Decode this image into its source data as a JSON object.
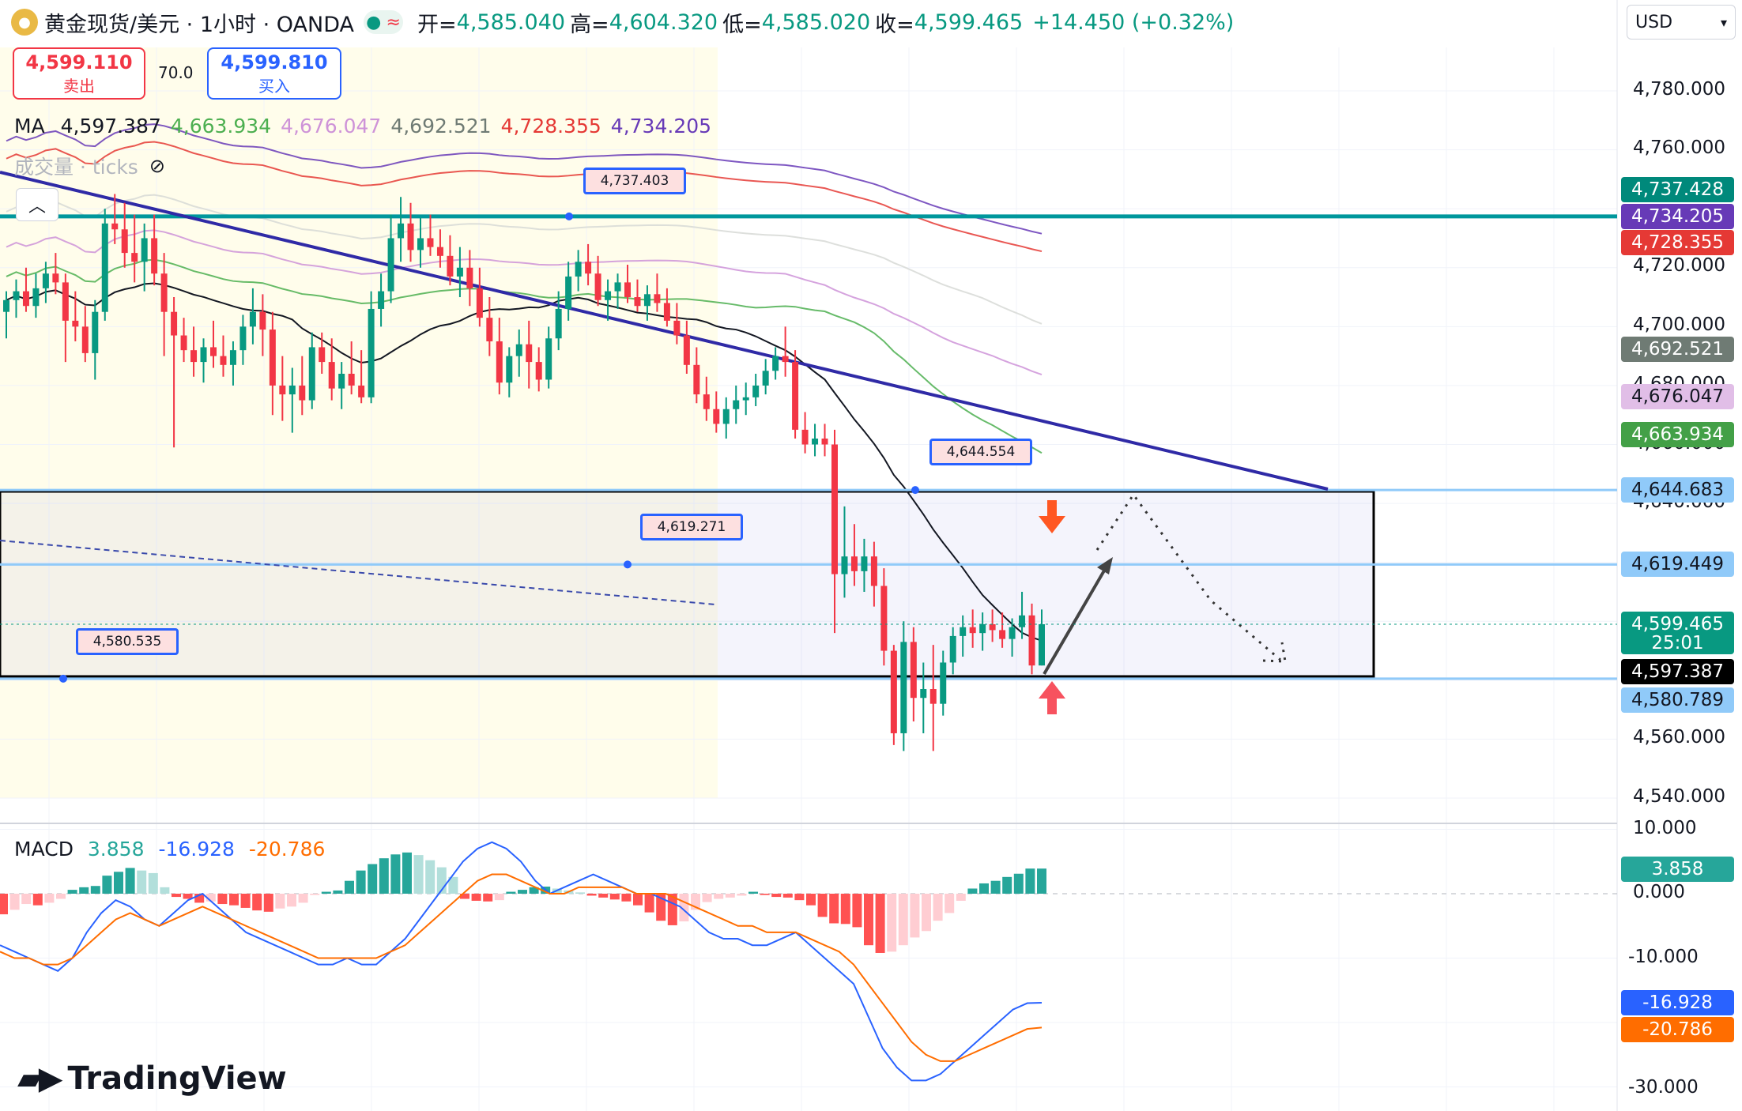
{
  "header": {
    "symbol": "黄金现货/美元 · 1小时 · OANDA",
    "open_label": "开=",
    "open": "4,585.040",
    "high_label": "高=",
    "high": "4,604.320",
    "low_label": "低=",
    "low": "4,585.020",
    "close_label": "收=",
    "close": "4,599.465",
    "change": "+14.450 (+0.32%)"
  },
  "trade": {
    "sell_price": "4,599.110",
    "sell_label": "卖出",
    "spread": "70.0",
    "buy_price": "4,599.810",
    "buy_label": "买入"
  },
  "ma_legend": {
    "label": "MA",
    "values": [
      "4,597.387",
      "4,663.934",
      "4,676.047",
      "4,692.521",
      "4,728.355",
      "4,734.205"
    ],
    "colors": [
      "#131722",
      "#4caf50",
      "#ce93d8",
      "#6f7b74",
      "#e53935",
      "#673ab7"
    ]
  },
  "volume_legend": "成交量 · ticks",
  "macd_legend": {
    "label": "MACD",
    "hist": "3.858",
    "macd": "-16.928",
    "signal": "-20.786"
  },
  "currency": "USD",
  "brand": "TradingView",
  "price_axis_ticks": [
    "4,780.000",
    "4,760.000",
    "4,720.000",
    "4,700.000",
    "4,680.000",
    "4,660.000",
    "4,640.000",
    "4,560.000",
    "4,540.000"
  ],
  "macd_axis_ticks": [
    "10.000",
    "0.000",
    "-10.000",
    "-30.000"
  ],
  "price_labels": [
    {
      "text": "4,737.428",
      "color": "#00897b"
    },
    {
      "text": "4,734.205",
      "color": "#673ab7"
    },
    {
      "text": "4,728.355",
      "color": "#e53935"
    },
    {
      "text": "4,692.521",
      "color": "#6f7b74"
    },
    {
      "text": "4,676.047",
      "color": "#e1bee7"
    },
    {
      "text": "4,663.934",
      "color": "#43a047"
    },
    {
      "text": "4,644.683",
      "color": "#90caf9"
    },
    {
      "text": "4,619.449",
      "color": "#90caf9"
    },
    {
      "text": "4,599.465",
      "color": "#089981"
    },
    {
      "text": "25:01",
      "color": "#089981"
    },
    {
      "text": "4,597.387",
      "color": "#000000"
    },
    {
      "text": "4,580.789",
      "color": "#90caf9"
    }
  ],
  "macd_labels": [
    {
      "text": "3.858",
      "color": "#26a69a"
    },
    {
      "text": "-16.928",
      "color": "#2962ff"
    },
    {
      "text": "-20.786",
      "color": "#ff6d00"
    }
  ],
  "callouts": [
    "4,737.403",
    "4,644.554",
    "4,619.271",
    "4,580.535"
  ],
  "chart_data": [
    {
      "type": "candlestick",
      "title": "黄金现货/美元 · 1小时 · OANDA",
      "ylim": [
        4530,
        4790
      ],
      "candles": [
        [
          4705,
          4712,
          4696,
          4709
        ],
        [
          4709,
          4716,
          4703,
          4712
        ],
        [
          4712,
          4720,
          4705,
          4707
        ],
        [
          4707,
          4718,
          4703,
          4713
        ],
        [
          4713,
          4722,
          4708,
          4718
        ],
        [
          4718,
          4725,
          4711,
          4715
        ],
        [
          4715,
          4718,
          4688,
          4702
        ],
        [
          4702,
          4712,
          4695,
          4700
        ],
        [
          4700,
          4707,
          4688,
          4691
        ],
        [
          4691,
          4709,
          4682,
          4705
        ],
        [
          4705,
          4740,
          4702,
          4735
        ],
        [
          4735,
          4745,
          4728,
          4733
        ],
        [
          4733,
          4742,
          4720,
          4725
        ],
        [
          4725,
          4738,
          4715,
          4722
        ],
        [
          4722,
          4735,
          4712,
          4730
        ],
        [
          4730,
          4738,
          4714,
          4718
        ],
        [
          4718,
          4725,
          4690,
          4705
        ],
        [
          4705,
          4710,
          4659,
          4697
        ],
        [
          4697,
          4703,
          4688,
          4692
        ],
        [
          4692,
          4700,
          4683,
          4688
        ],
        [
          4688,
          4696,
          4681,
          4693
        ],
        [
          4693,
          4702,
          4686,
          4690
        ],
        [
          4690,
          4697,
          4683,
          4687
        ],
        [
          4687,
          4695,
          4680,
          4692
        ],
        [
          4692,
          4704,
          4687,
          4700
        ],
        [
          4700,
          4713,
          4694,
          4705
        ],
        [
          4705,
          4711,
          4690,
          4699
        ],
        [
          4699,
          4705,
          4670,
          4680
        ],
        [
          4680,
          4690,
          4668,
          4677
        ],
        [
          4677,
          4686,
          4664,
          4680
        ],
        [
          4680,
          4690,
          4670,
          4675
        ],
        [
          4675,
          4698,
          4672,
          4693
        ],
        [
          4693,
          4698,
          4684,
          4688
        ],
        [
          4688,
          4696,
          4675,
          4679
        ],
        [
          4679,
          4688,
          4672,
          4684
        ],
        [
          4684,
          4695,
          4677,
          4680
        ],
        [
          4680,
          4692,
          4674,
          4676
        ],
        [
          4676,
          4712,
          4674,
          4706
        ],
        [
          4706,
          4718,
          4700,
          4712
        ],
        [
          4712,
          4738,
          4708,
          4730
        ],
        [
          4730,
          4744,
          4722,
          4735
        ],
        [
          4735,
          4742,
          4722,
          4726
        ],
        [
          4726,
          4737,
          4720,
          4730
        ],
        [
          4730,
          4738,
          4724,
          4727
        ],
        [
          4727,
          4733,
          4720,
          4724
        ],
        [
          4724,
          4731,
          4714,
          4717
        ],
        [
          4717,
          4727,
          4710,
          4720
        ],
        [
          4720,
          4726,
          4707,
          4713
        ],
        [
          4713,
          4720,
          4700,
          4703
        ],
        [
          4703,
          4710,
          4690,
          4695
        ],
        [
          4695,
          4703,
          4677,
          4681
        ],
        [
          4681,
          4693,
          4676,
          4690
        ],
        [
          4690,
          4699,
          4683,
          4694
        ],
        [
          4694,
          4702,
          4679,
          4688
        ],
        [
          4688,
          4693,
          4678,
          4682
        ],
        [
          4682,
          4700,
          4679,
          4696
        ],
        [
          4696,
          4712,
          4692,
          4706
        ],
        [
          4706,
          4722,
          4702,
          4717
        ],
        [
          4717,
          4726,
          4712,
          4722
        ],
        [
          4722,
          4728,
          4714,
          4718
        ],
        [
          4718,
          4724,
          4707,
          4709
        ],
        [
          4709,
          4716,
          4702,
          4712
        ],
        [
          4712,
          4718,
          4706,
          4715
        ],
        [
          4715,
          4721,
          4708,
          4710
        ],
        [
          4710,
          4716,
          4705,
          4707
        ],
        [
          4707,
          4714,
          4702,
          4711
        ],
        [
          4711,
          4718,
          4705,
          4708
        ],
        [
          4708,
          4713,
          4700,
          4702
        ],
        [
          4702,
          4708,
          4694,
          4697
        ],
        [
          4697,
          4702,
          4684,
          4687
        ],
        [
          4687,
          4693,
          4674,
          4677
        ],
        [
          4677,
          4683,
          4668,
          4672
        ],
        [
          4672,
          4678,
          4664,
          4667
        ],
        [
          4667,
          4676,
          4662,
          4672
        ],
        [
          4672,
          4680,
          4667,
          4675
        ],
        [
          4675,
          4681,
          4670,
          4676
        ],
        [
          4676,
          4684,
          4673,
          4680
        ],
        [
          4680,
          4689,
          4677,
          4685
        ],
        [
          4685,
          4693,
          4682,
          4690
        ],
        [
          4690,
          4700,
          4683,
          4688
        ],
        [
          4688,
          4692,
          4662,
          4665
        ],
        [
          4665,
          4671,
          4657,
          4660
        ],
        [
          4660,
          4667,
          4656,
          4662
        ],
        [
          4662,
          4667,
          4656,
          4660
        ],
        [
          4660,
          4665,
          4596,
          4616
        ],
        [
          4616,
          4639,
          4608,
          4622
        ],
        [
          4622,
          4633,
          4612,
          4617
        ],
        [
          4617,
          4628,
          4610,
          4622
        ],
        [
          4622,
          4627,
          4605,
          4612
        ],
        [
          4612,
          4618,
          4585,
          4590
        ],
        [
          4590,
          4592,
          4558,
          4562
        ],
        [
          4562,
          4600,
          4556,
          4593
        ],
        [
          4593,
          4598,
          4566,
          4574
        ],
        [
          4574,
          4586,
          4562,
          4577
        ],
        [
          4577,
          4592,
          4556,
          4572
        ],
        [
          4572,
          4590,
          4568,
          4586
        ],
        [
          4586,
          4598,
          4582,
          4595
        ],
        [
          4595,
          4602,
          4588,
          4598
        ],
        [
          4598,
          4604,
          4591,
          4596
        ],
        [
          4596,
          4603,
          4590,
          4599
        ],
        [
          4599,
          4604,
          4593,
          4597
        ],
        [
          4597,
          4603,
          4591,
          4594
        ],
        [
          4594,
          4601,
          4588,
          4598
        ],
        [
          4598,
          4610,
          4594,
          4602
        ],
        [
          4602,
          4606,
          4582,
          4585
        ],
        [
          4585,
          4604,
          4585,
          4599
        ]
      ],
      "horizontal_levels": [
        4737.403,
        4644.554,
        4619.271,
        4580.535
      ],
      "projection_path": [
        [
          4585,
          4585
        ],
        [
          4619,
          4619
        ],
        [
          4640,
          4640
        ],
        [
          4585,
          4585
        ]
      ]
    },
    {
      "type": "bar",
      "title": "MACD",
      "ylim": [
        -32,
        11
      ],
      "values": [
        -3.2,
        -2.5,
        -1.6,
        -1.8,
        -1.4,
        -0.8,
        0.6,
        1.0,
        1.2,
        2.8,
        3.4,
        4.0,
        3.6,
        3.2,
        1.0,
        -0.5,
        -0.8,
        -1.4,
        -1.2,
        -1.6,
        -1.8,
        -2.2,
        -2.6,
        -2.8,
        -2.3,
        -2.0,
        -1.4,
        -0.2,
        0.3,
        0.5,
        2.0,
        3.6,
        4.6,
        5.5,
        6.1,
        6.4,
        6.0,
        5.2,
        4.1,
        2.6,
        -0.8,
        -1.1,
        -1.2,
        -1.0,
        0.3,
        0.6,
        1.0,
        1.1,
        0.8,
        0.5,
        0.2,
        -0.3,
        -0.6,
        -0.9,
        -1.2,
        -1.8,
        -2.9,
        -4.2,
        -4.9,
        -4.3,
        -2.5,
        -1.3,
        -0.8,
        -0.6,
        -0.3,
        0.3,
        -0.2,
        -0.5,
        -0.6,
        -1.0,
        -1.8,
        -3.6,
        -4.6,
        -4.7,
        -5.2,
        -8.0,
        -9.2,
        -9.0,
        -8.0,
        -6.8,
        -5.8,
        -4.2,
        -3.0,
        -1.1,
        0.8,
        1.6,
        2.0,
        2.6,
        3.1,
        3.9,
        3.9
      ],
      "macd_line": [
        -8,
        -9,
        -10,
        -11,
        -12,
        -10,
        -6,
        -3,
        -1,
        -2,
        -4,
        -5,
        -3,
        -1,
        0,
        -2,
        -4,
        -6,
        -7,
        -8,
        -9,
        -10,
        -11,
        -11,
        -10,
        -11,
        -11,
        -9,
        -7,
        -4,
        -1,
        2,
        5,
        7,
        8,
        7,
        5,
        2,
        0,
        1,
        2,
        3,
        2,
        1,
        0,
        0,
        -1,
        -2,
        -4,
        -6,
        -7,
        -7,
        -8,
        -8,
        -7,
        -6,
        -8,
        -10,
        -12,
        -14,
        -19,
        -24,
        -27,
        -29,
        -29,
        -28,
        -26,
        -24,
        -22,
        -20,
        -18,
        -17,
        -16.928
      ],
      "signal_line": [
        -9,
        -10,
        -10,
        -11,
        -11,
        -10,
        -8,
        -6,
        -4,
        -3,
        -4,
        -5,
        -4,
        -3,
        -2,
        -3,
        -4,
        -5,
        -6,
        -7,
        -8,
        -9,
        -10,
        -10,
        -10,
        -10,
        -10,
        -9,
        -8,
        -6,
        -4,
        -2,
        0,
        2,
        3,
        3,
        2,
        1,
        0,
        0,
        1,
        1,
        1,
        1,
        0,
        0,
        0,
        -1,
        -2,
        -3,
        -4,
        -5,
        -5,
        -6,
        -6,
        -6,
        -7,
        -8,
        -9,
        -11,
        -14,
        -17,
        -20,
        -23,
        -25,
        -26,
        -26,
        -25,
        -24,
        -23,
        -22,
        -21,
        -20.786
      ]
    }
  ]
}
